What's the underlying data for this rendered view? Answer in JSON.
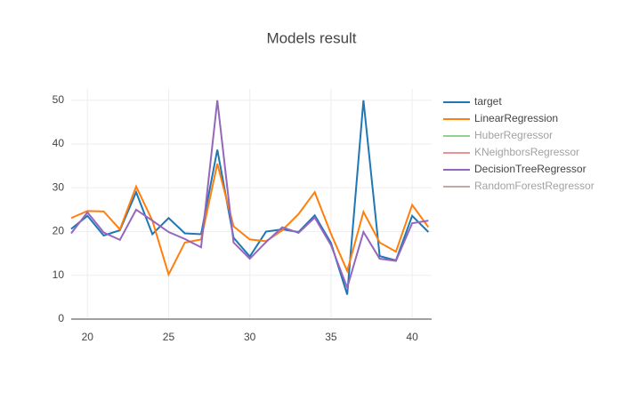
{
  "chart_data": {
    "type": "line",
    "title": "Models result",
    "x": [
      19,
      20,
      21,
      22,
      23,
      24,
      25,
      26,
      27,
      28,
      29,
      30,
      31,
      32,
      33,
      34,
      35,
      36,
      37,
      38,
      39,
      40,
      41
    ],
    "xlim": [
      19,
      41.2
    ],
    "xticks": [
      20,
      25,
      30,
      35,
      40
    ],
    "ylim": [
      0,
      52.6
    ],
    "yticks": [
      0,
      10,
      20,
      30,
      40,
      50
    ],
    "grid": true,
    "zeroline": true,
    "legend": "right",
    "series": [
      {
        "name": "target",
        "color": "#1f77b4",
        "values": [
          20.6,
          23.6,
          19.1,
          20.3,
          29,
          19.4,
          23.1,
          19.6,
          19.4,
          38.7,
          18.6,
          14.3,
          20,
          20.5,
          19.9,
          23.7,
          17.4,
          5.6,
          50,
          14.4,
          13.4,
          23.6,
          19.9
        ]
      },
      {
        "name": "LinearRegression",
        "color": "#ff7f0e",
        "values": [
          23.1,
          24.7,
          24.6,
          20.5,
          30.3,
          22.5,
          10.2,
          17.5,
          18.2,
          35.5,
          21.2,
          18.2,
          17.8,
          20.3,
          24,
          29,
          19.5,
          11,
          24.5,
          17.5,
          15.4,
          26.1,
          21
        ]
      },
      {
        "name": "HuberRegressor",
        "color": "#2ca02c",
        "visible": "legendonly"
      },
      {
        "name": "KNeighborsRegressor",
        "color": "#d62728",
        "visible": "legendonly"
      },
      {
        "name": "DecisionTreeRegressor",
        "color": "#9467bd",
        "values": [
          19.6,
          24.4,
          19.8,
          18.1,
          25,
          22.5,
          19.9,
          18.3,
          16.4,
          50,
          17.5,
          13.8,
          17.6,
          21,
          19.7,
          23.2,
          16.9,
          7.2,
          19.9,
          13.8,
          13.3,
          21.9,
          22.5
        ]
      },
      {
        "name": "RandomForestRegressor",
        "color": "#8c564b",
        "visible": "legendonly"
      }
    ]
  }
}
